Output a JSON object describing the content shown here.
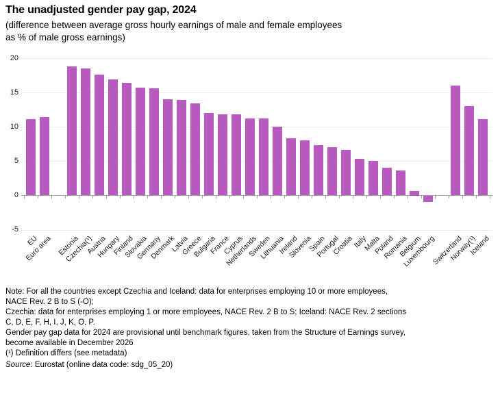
{
  "chart_data": {
    "type": "bar",
    "title": "The unadjusted gender pay gap, 2024",
    "subtitle_line1": "(difference between average gross hourly earnings of male and female employees",
    "subtitle_line2": "as % of male gross earnings)",
    "categories": [
      "EU",
      "Euro area",
      "Estonia",
      "Czechia(¹)",
      "Austria",
      "Hungary",
      "Finland",
      "Slovakia",
      "Germany",
      "Denmark",
      "Latvia",
      "Greece",
      "Bulgaria",
      "France",
      "Cyprus",
      "Netherlands",
      "Sweden",
      "Lithuania",
      "Ireland",
      "Slovenia",
      "Spain",
      "Portugal",
      "Croatia",
      "Italy",
      "Malta",
      "Poland",
      "Romania",
      "Belgium",
      "Luxembourg",
      "Switzerland",
      "Norway(¹)",
      "Iceland"
    ],
    "values": [
      11.1,
      11.4,
      18.8,
      18.5,
      17.6,
      16.9,
      16.4,
      15.7,
      15.6,
      14.0,
      13.9,
      13.4,
      12.0,
      11.8,
      11.8,
      11.2,
      11.2,
      10.0,
      8.3,
      8.0,
      7.3,
      7.0,
      6.6,
      5.3,
      5.0,
      4.0,
      3.6,
      0.7,
      -0.9,
      16.0,
      13.0,
      11.1
    ],
    "gap_after_indices": [
      1,
      28
    ],
    "xlabel": "",
    "ylabel": "",
    "ylim": [
      -5,
      20
    ],
    "yticks": [
      20,
      15,
      10,
      5,
      0,
      -5
    ],
    "grid": true,
    "legend": "none",
    "colors": {
      "bar": "#b95ac0",
      "grid": "#ececec",
      "axis": "#a6a6a6"
    }
  },
  "notes": {
    "lines": [
      "Note: For all the countries except Czechia and Iceland: data for enterprises employing 10 or more employees,",
      "NACE Rev. 2 B to S (-O);",
      "Czechia: data for enterprises employing 1 or more employees, NACE Rev. 2 B to S; Iceland: NACE Rev. 2 sections",
      "C, D, E, F, H, I, J, K, O, P.",
      "Gender pay gap data for 2024 are provisional until benchmark figures, taken from the Structure of Earnings survey,",
      "become available in December 2026"
    ],
    "footnote": "(¹) Definition differs (see metadata)",
    "source_label": "Source:",
    "source_rest": " Eurostat (online data code: sdg_05_20)"
  }
}
